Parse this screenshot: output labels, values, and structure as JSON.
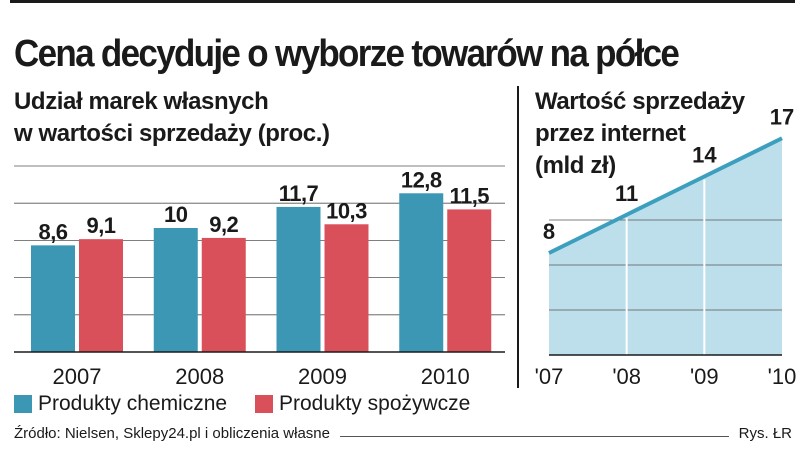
{
  "title": "Cena decyduje o wyborze towarów na półce",
  "colors": {
    "chemical": "#3b97b4",
    "food": "#d9505a",
    "area_fill": "#bddfeb",
    "area_line": "#3d9fbe",
    "text": "#1a1a1a"
  },
  "legend": {
    "chemical": "Produkty chemiczne",
    "food": "Produkty spożywcze"
  },
  "footer": {
    "source": "Źródło: Nielsen, Sklepy24.pl i obliczenia własne",
    "credit": "Rys. ŁR"
  },
  "chart_data": [
    {
      "type": "bar",
      "title": "Udział marek własnych\nw wartości sprzedaży (proc.)",
      "title_lines": [
        "Udział marek własnych",
        "w wartości sprzedaży (proc.)"
      ],
      "categories": [
        "2007",
        "2008",
        "2009",
        "2010"
      ],
      "series": [
        {
          "name": "Produkty chemiczne",
          "values": [
            8.6,
            10,
            11.7,
            12.8
          ],
          "labels": [
            "8,6",
            "10",
            "11,7",
            "12,8"
          ]
        },
        {
          "name": "Produkty spożywcze",
          "values": [
            9.1,
            9.2,
            10.3,
            11.5
          ],
          "labels": [
            "9,1",
            "9,2",
            "10,3",
            "11,5"
          ]
        }
      ],
      "ylim": [
        0,
        15
      ],
      "grid": true,
      "legend_position": "bottom"
    },
    {
      "type": "area",
      "title": "Wartość sprzedaży\nprzez internet\n(mld zł)",
      "title_lines": [
        "Wartość sprzedaży",
        "przez internet",
        "(mld zł)"
      ],
      "categories": [
        "'07",
        "'08",
        "'09",
        "'10"
      ],
      "values": [
        8,
        11,
        14,
        17
      ],
      "labels": [
        "8",
        "11",
        "14",
        "17"
      ],
      "ylim": [
        0,
        20
      ],
      "grid": true
    }
  ]
}
